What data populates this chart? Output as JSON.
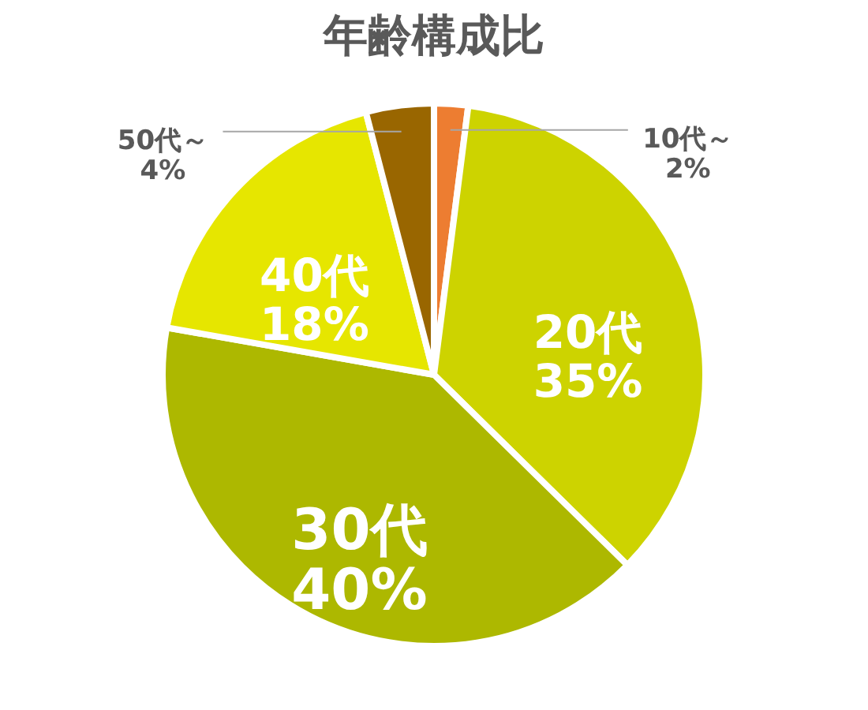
{
  "chart_data": {
    "type": "pie",
    "title": "年齢構成比",
    "categories": [
      "10代～",
      "20代",
      "30代",
      "40代",
      "50代～"
    ],
    "values": [
      2,
      35,
      40,
      18,
      4
    ],
    "value_labels": [
      "2%",
      "35%",
      "40%",
      "18%",
      "4%"
    ],
    "colors": [
      "#ed7d31",
      "#cdd300",
      "#adb800",
      "#e6e600",
      "#996600"
    ],
    "legend": false
  }
}
